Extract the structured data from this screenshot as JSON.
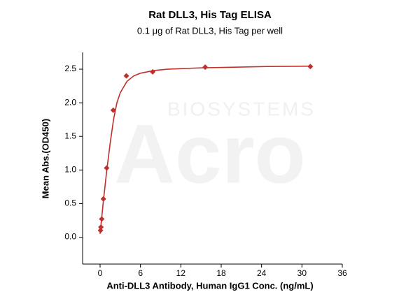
{
  "chart_data": {
    "type": "scatter",
    "title": "Rat DLL3, His Tag ELISA",
    "subtitle": "0.1 μg of Rat DLL3, His Tag per well",
    "x_label": "Anti-DLL3 Antibody, Human IgG1 Conc. (ng/mL)",
    "y_label": "Mean Abs.(OD450)",
    "watermark": [
      "Acro",
      "BIOSYSTEMS"
    ],
    "color": "#c0302b",
    "x": [
      0.061,
      0.122,
      0.244,
      0.488,
      0.977,
      1.953,
      3.906,
      7.8125,
      15.625,
      31.25
    ],
    "values": [
      0.1,
      0.15,
      0.27,
      0.57,
      1.03,
      1.89,
      2.4,
      2.46,
      2.53,
      2.54
    ],
    "curve": {
      "x": [
        0,
        0.5,
        1,
        1.5,
        2,
        2.5,
        3,
        4,
        5,
        6,
        8,
        10,
        15,
        20,
        25,
        31.25
      ],
      "values": [
        0.05,
        0.55,
        1.0,
        1.4,
        1.75,
        2.0,
        2.15,
        2.32,
        2.4,
        2.44,
        2.48,
        2.5,
        2.52,
        2.53,
        2.54,
        2.545
      ]
    },
    "xlim": [
      -2.6,
      36
    ],
    "ylim": [
      -0.4,
      2.75
    ],
    "xticks": [
      0,
      6,
      12,
      18,
      24,
      30,
      36
    ],
    "yticks": [
      {
        "value": 0,
        "label": "0.0"
      },
      0.5,
      {
        "value": 1,
        "label": "1.0"
      },
      1.5,
      {
        "value": 2,
        "label": "2.0"
      },
      2.5
    ]
  }
}
